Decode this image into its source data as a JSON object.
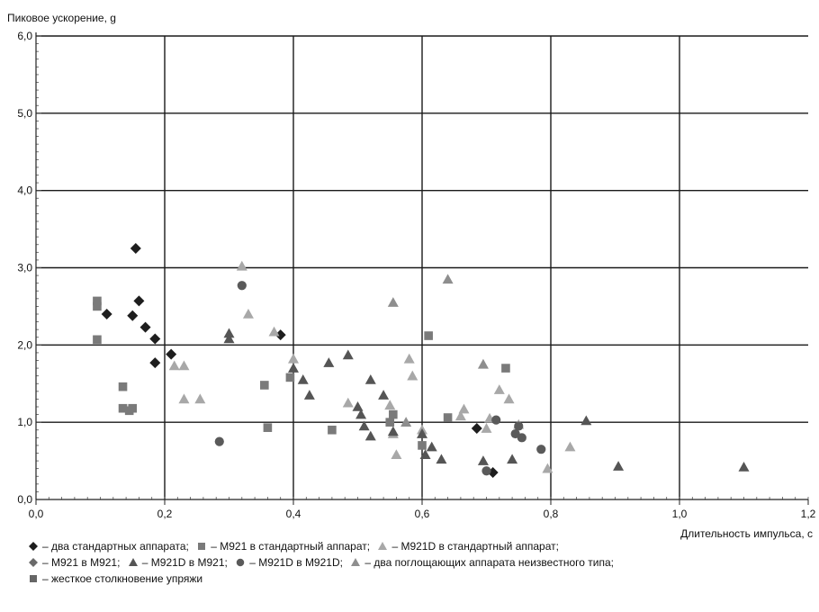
{
  "chart_data": {
    "type": "scatter",
    "ylabel": "Пиковое ускорение, g",
    "xlabel": "Длительность импульса, с",
    "xlim": [
      0,
      1.2
    ],
    "ylim": [
      0,
      6
    ],
    "x_ticks": [
      "0,0",
      "0,2",
      "0,4",
      "0,6",
      "0,8",
      "1,0",
      "1,2"
    ],
    "y_ticks": [
      "0,0",
      "1,0",
      "2,0",
      "3,0",
      "4,0",
      "5,0",
      "6,0"
    ],
    "grid": true,
    "series": [
      {
        "name": "– два стандартных аппарата;",
        "marker": "diamond",
        "color": "#1e1e1e",
        "points": [
          [
            0.11,
            2.4
          ],
          [
            0.15,
            2.38
          ],
          [
            0.155,
            3.25
          ],
          [
            0.16,
            2.57
          ],
          [
            0.17,
            2.23
          ],
          [
            0.185,
            2.08
          ],
          [
            0.185,
            1.77
          ],
          [
            0.21,
            1.88
          ],
          [
            0.38,
            2.13
          ],
          [
            0.685,
            0.92
          ],
          [
            0.71,
            0.35
          ]
        ]
      },
      {
        "name": "– M921 в стандартный аппарат;",
        "marker": "square",
        "color": "#7a7a7a",
        "points": [
          [
            0.095,
            2.57
          ],
          [
            0.095,
            2.5
          ],
          [
            0.095,
            2.07
          ],
          [
            0.135,
            1.46
          ],
          [
            0.135,
            1.18
          ],
          [
            0.145,
            1.15
          ],
          [
            0.15,
            1.18
          ],
          [
            0.355,
            1.48
          ],
          [
            0.36,
            0.93
          ],
          [
            0.395,
            1.58
          ],
          [
            0.46,
            0.9
          ],
          [
            0.55,
            1.0
          ],
          [
            0.555,
            1.1
          ],
          [
            0.6,
            0.7
          ],
          [
            0.61,
            2.12
          ],
          [
            0.64,
            1.06
          ],
          [
            0.73,
            1.7
          ]
        ]
      },
      {
        "name": "– M921D в стандартный аппарат;",
        "marker": "triangle",
        "color": "#a8a8a8",
        "points": [
          [
            0.215,
            1.73
          ],
          [
            0.23,
            1.3
          ],
          [
            0.23,
            1.73
          ],
          [
            0.255,
            1.3
          ],
          [
            0.32,
            3.02
          ],
          [
            0.33,
            2.4
          ],
          [
            0.37,
            2.17
          ],
          [
            0.4,
            1.82
          ],
          [
            0.485,
            1.25
          ],
          [
            0.55,
            1.22
          ],
          [
            0.555,
            0.85
          ],
          [
            0.56,
            0.58
          ],
          [
            0.58,
            1.82
          ],
          [
            0.585,
            1.6
          ],
          [
            0.6,
            0.9
          ],
          [
            0.66,
            1.08
          ],
          [
            0.665,
            1.17
          ],
          [
            0.7,
            0.92
          ],
          [
            0.705,
            1.05
          ],
          [
            0.72,
            1.42
          ],
          [
            0.735,
            1.3
          ],
          [
            0.75,
            0.97
          ],
          [
            0.795,
            0.4
          ],
          [
            0.83,
            0.68
          ]
        ]
      },
      {
        "name": "– M921 в M921;",
        "marker": "diamond",
        "color": "#6a6a6a",
        "points": []
      },
      {
        "name": "– M921D в M921;",
        "marker": "triangle",
        "color": "#555555",
        "points": [
          [
            0.3,
            2.15
          ],
          [
            0.3,
            2.08
          ],
          [
            0.4,
            1.7
          ],
          [
            0.415,
            1.55
          ],
          [
            0.425,
            1.35
          ],
          [
            0.455,
            1.77
          ],
          [
            0.485,
            1.87
          ],
          [
            0.5,
            1.2
          ],
          [
            0.505,
            1.1
          ],
          [
            0.51,
            0.95
          ],
          [
            0.52,
            0.82
          ],
          [
            0.52,
            1.55
          ],
          [
            0.54,
            1.35
          ],
          [
            0.555,
            0.88
          ],
          [
            0.6,
            0.85
          ],
          [
            0.605,
            0.58
          ],
          [
            0.615,
            0.68
          ],
          [
            0.63,
            0.52
          ],
          [
            0.695,
            0.5
          ],
          [
            0.74,
            0.52
          ],
          [
            0.855,
            1.02
          ],
          [
            0.905,
            0.43
          ],
          [
            1.1,
            0.42
          ]
        ]
      },
      {
        "name": "– M921D в M921D;",
        "marker": "circle",
        "color": "#5a5a5a",
        "points": [
          [
            0.285,
            0.75
          ],
          [
            0.32,
            2.77
          ],
          [
            0.7,
            0.37
          ],
          [
            0.715,
            1.03
          ],
          [
            0.745,
            0.85
          ],
          [
            0.75,
            0.95
          ],
          [
            0.755,
            0.8
          ],
          [
            0.785,
            0.65
          ]
        ]
      },
      {
        "name": "– два поглощающих аппарата неизвестного типа;",
        "marker": "triangle",
        "color": "#8e8e8e",
        "points": [
          [
            0.555,
            2.55
          ],
          [
            0.64,
            2.85
          ],
          [
            0.695,
            1.75
          ],
          [
            0.575,
            1.0
          ]
        ]
      },
      {
        "name": "– жесткое столкновение упряжи",
        "marker": "square",
        "color": "#666666",
        "points": []
      }
    ]
  },
  "legend_lines": [
    [
      0,
      1,
      2
    ],
    [
      3,
      4,
      5,
      6
    ],
    [
      7
    ]
  ]
}
